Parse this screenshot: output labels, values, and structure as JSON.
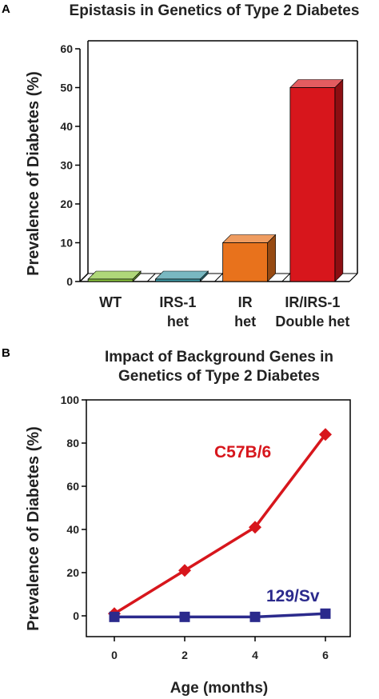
{
  "chart_data": [
    {
      "panel": "A",
      "type": "bar",
      "title": "Epistasis in Genetics of Type 2 Diabetes",
      "ylabel": "Prevalence of Diabetes (%)",
      "xlabel": "",
      "ylim": [
        0,
        60
      ],
      "yticks": [
        "0",
        "10",
        "20",
        "30",
        "40",
        "50",
        "60"
      ],
      "categories": [
        [
          "WT"
        ],
        [
          "IRS-1",
          "het"
        ],
        [
          "IR",
          "het"
        ],
        [
          "IR/IRS-1",
          "Double het"
        ]
      ],
      "values": [
        0,
        0,
        10,
        50
      ],
      "colors": [
        "#8cc63f",
        "#3f9aa6",
        "#e8721c",
        "#d7161c"
      ],
      "style": "3d"
    },
    {
      "panel": "B",
      "type": "line",
      "title": [
        "Impact of Background Genes in",
        "Genetics of Type 2 Diabetes"
      ],
      "ylabel": "Prevalence of Diabetes (%)",
      "xlabel": "Age (months)",
      "ylim": [
        0,
        100
      ],
      "xlim": [
        0,
        6
      ],
      "yticks": [
        "0",
        "20",
        "40",
        "60",
        "80",
        "100"
      ],
      "xticks": [
        "0",
        "2",
        "4",
        "6"
      ],
      "series": [
        {
          "name": "C57B/6",
          "color": "#d7161c",
          "marker": "diamond",
          "x": [
            0,
            2,
            4,
            6
          ],
          "y": [
            1,
            21,
            41,
            84
          ]
        },
        {
          "name": "129/Sv",
          "color": "#2b2a8c",
          "marker": "square",
          "x": [
            0,
            2,
            4,
            6
          ],
          "y": [
            -0.5,
            -0.5,
            -0.5,
            1
          ]
        }
      ]
    }
  ]
}
